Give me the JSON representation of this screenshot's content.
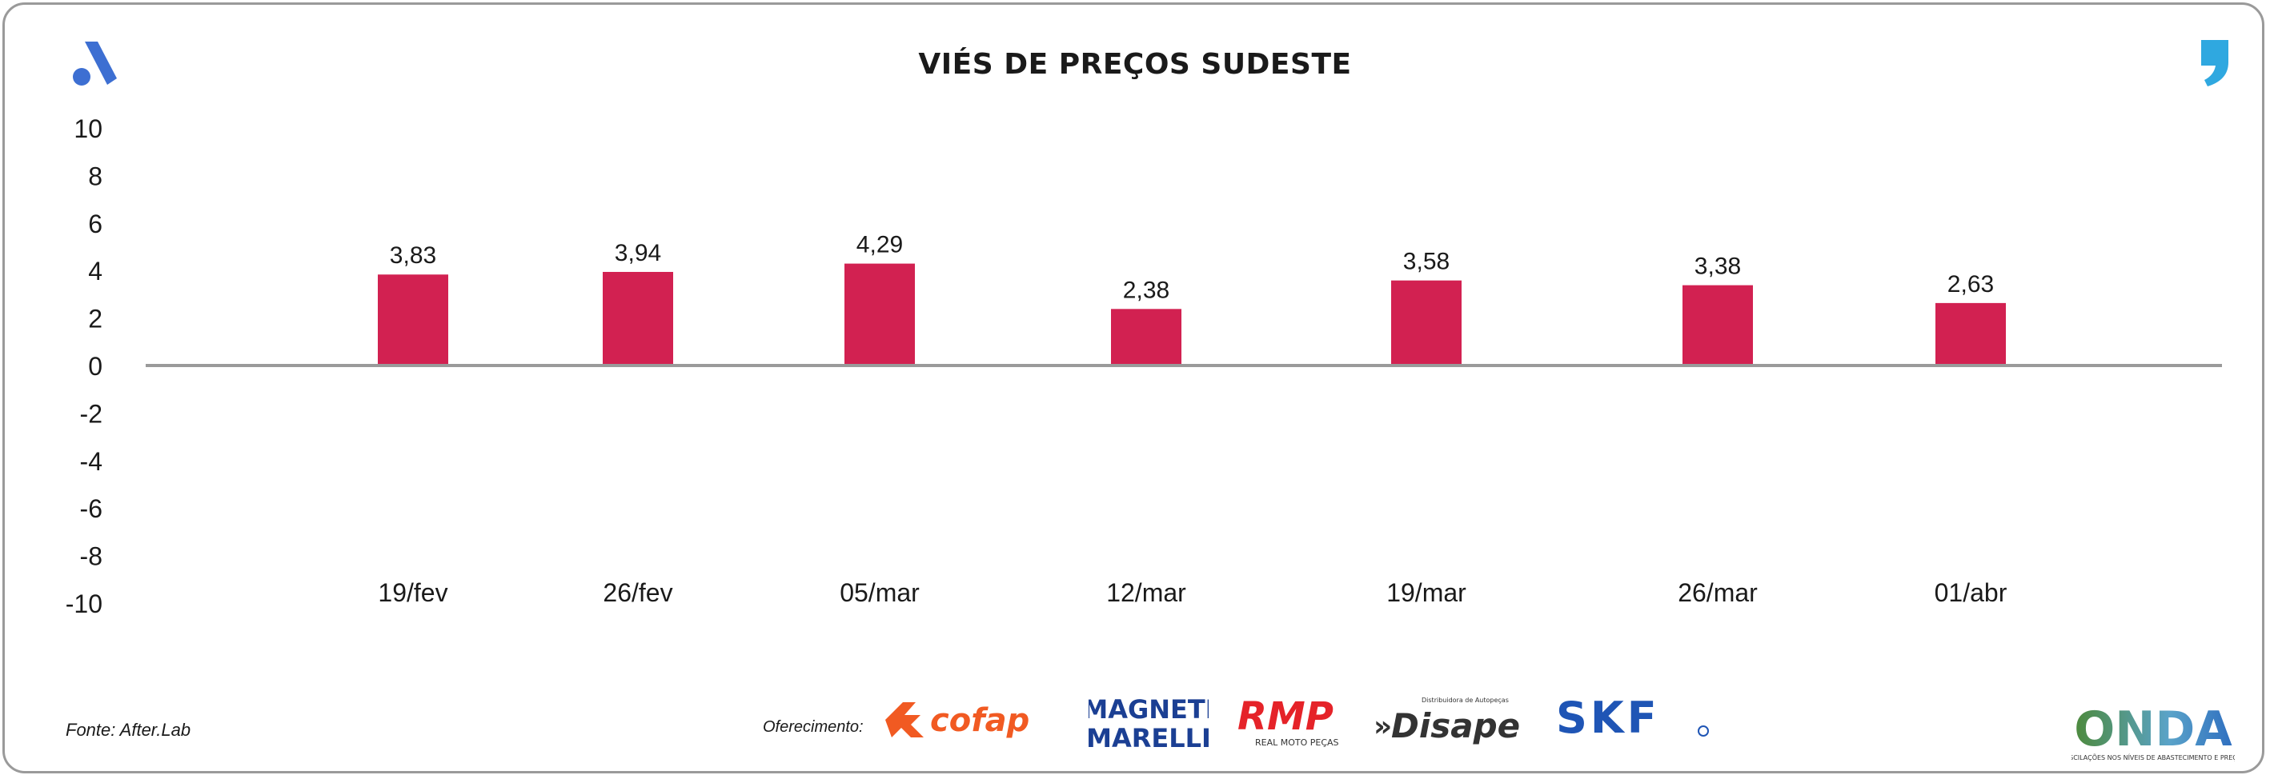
{
  "header": {
    "title": "VIÉS DE PREÇOS SUDESTE"
  },
  "colors": {
    "bar": "#d22151",
    "brand_blue": "#3d6fd2",
    "accent_blue": "#2fa8e0",
    "axis": "#9a9a9a"
  },
  "chart_data": {
    "type": "bar",
    "title": "VIÉS DE PREÇOS SUDESTE",
    "xlabel": "",
    "ylabel": "",
    "categories": [
      "19/fev",
      "26/fev",
      "05/mar",
      "12/mar",
      "19/mar",
      "26/mar",
      "01/abr"
    ],
    "values": [
      3.83,
      3.94,
      4.29,
      2.38,
      3.58,
      3.38,
      2.63
    ],
    "value_labels": [
      "3,83",
      "3,94",
      "4,29",
      "2,38",
      "3,58",
      "3,38",
      "2,63"
    ],
    "ylim": [
      -10,
      10
    ],
    "yticks": [
      "10",
      "8",
      "6",
      "4",
      "2",
      "0",
      "-2",
      "-4",
      "-6",
      "-8",
      "-10"
    ],
    "grid": false,
    "legend": "none"
  },
  "footer": {
    "source": "Fonte: After.Lab",
    "sponsor_label": "Oferecimento:",
    "sponsors": {
      "cofap": "cofap",
      "magneti_1": "MAGNETI",
      "magneti_2": "MARELLI",
      "rmp": "RMP",
      "rmp_sub": "REAL MOTO PEÇAS",
      "disape": "Disape",
      "disape_sub": "Distribuidora de Autopeças",
      "skf": "SKF",
      "onda": "ONDA",
      "onda_sub": "OSCILAÇÕES NOS NÍVEIS DE ABASTECIMENTO E PREÇO"
    }
  },
  "icons": {
    "brand_logo": "afterlab-a-icon",
    "quote": "quote-mark-icon"
  }
}
